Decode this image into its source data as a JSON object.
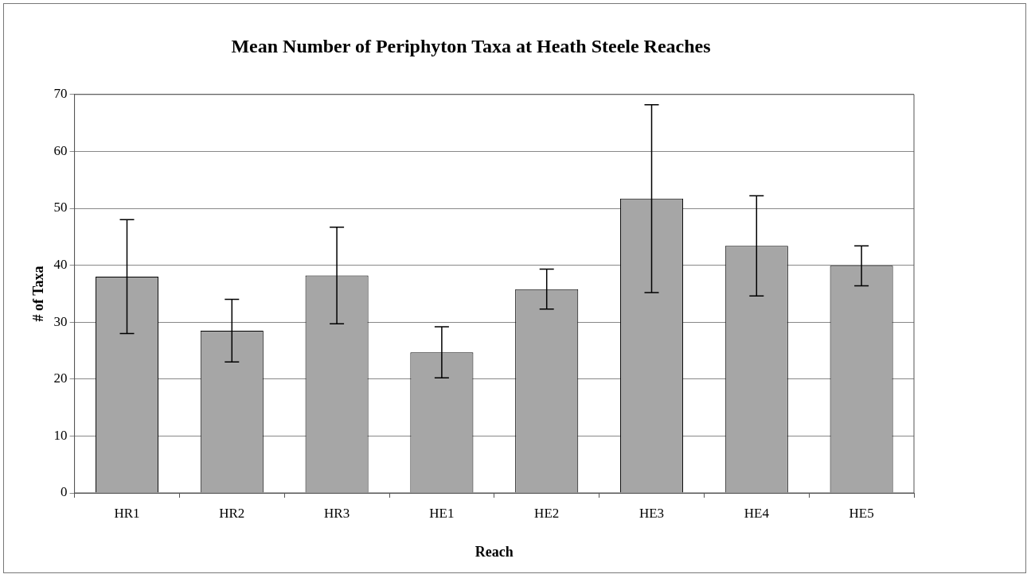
{
  "chart_data": {
    "type": "bar",
    "title": "Mean Number of Periphyton Taxa at Heath Steele Reaches",
    "xlabel": "Reach",
    "ylabel": "# of Taxa",
    "categories": [
      "HR1",
      "HR2",
      "HR3",
      "HE1",
      "HE2",
      "HE3",
      "HE4",
      "HE5"
    ],
    "values": [
      38,
      28.5,
      38.2,
      24.7,
      35.8,
      51.7,
      43.4,
      39.9
    ],
    "errors": [
      10,
      5.5,
      8.5,
      4.5,
      3.5,
      16.5,
      8.8,
      3.5
    ],
    "color": "#a6a6a6",
    "ylim": [
      0,
      70
    ],
    "yticks": [
      0,
      10,
      20,
      30,
      40,
      50,
      60,
      70
    ],
    "grid": "y",
    "legend": false
  }
}
